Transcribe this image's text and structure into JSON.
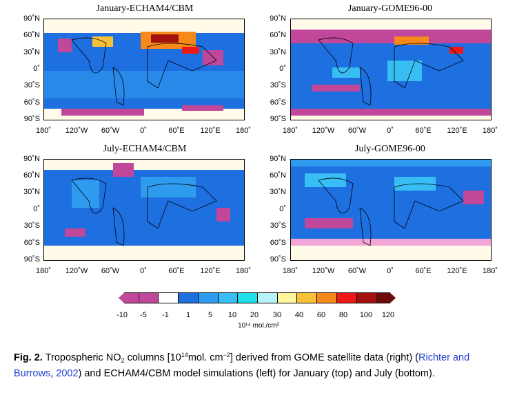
{
  "panels": [
    {
      "title": "January-ECHAM4/CBM"
    },
    {
      "title": "January-GOME96-00"
    },
    {
      "title": "July-ECHAM4/CBM"
    },
    {
      "title": "July-GOME96-00"
    }
  ],
  "lat_labels": [
    "90˚N",
    "60˚N",
    "30˚N",
    "0˚",
    "30˚S",
    "60˚S",
    "90˚S"
  ],
  "lon_labels": [
    "180˚",
    "120˚W",
    "60˚W",
    "0˚",
    "60˚E",
    "120˚E",
    "180˚"
  ],
  "colorbar": {
    "labels": [
      "-10",
      "-5",
      "-1",
      "1",
      "5",
      "10",
      "20",
      "30",
      "40",
      "60",
      "80",
      "100",
      "120"
    ],
    "colors": [
      "#c0479a",
      "#c0479a",
      "#ffffff",
      "#1e6fe0",
      "#2f9bef",
      "#38bdf4",
      "#1fe0e8",
      "#b8f4f7",
      "#fff59a",
      "#f7c23a",
      "#f58a1a",
      "#ee1818",
      "#a3120f",
      "#6e0a0a"
    ],
    "unit": "10¹⁴ mol./cm²"
  },
  "caption": {
    "fig": "Fig. 2.",
    "t1": "Tropospheric NO",
    "sub1": "2",
    "t2": " columns [10",
    "sup1": "14",
    "t3": "mol. cm",
    "sup2": "−2",
    "t4": "] derived from GOME satellite data (right) (",
    "ref1": "Richter and Burrows",
    "t5": ", ",
    "ref2": "2002",
    "t6": ") and ECHAM4/CBM model simulations (left) for January (top) and July (bottom)."
  }
}
